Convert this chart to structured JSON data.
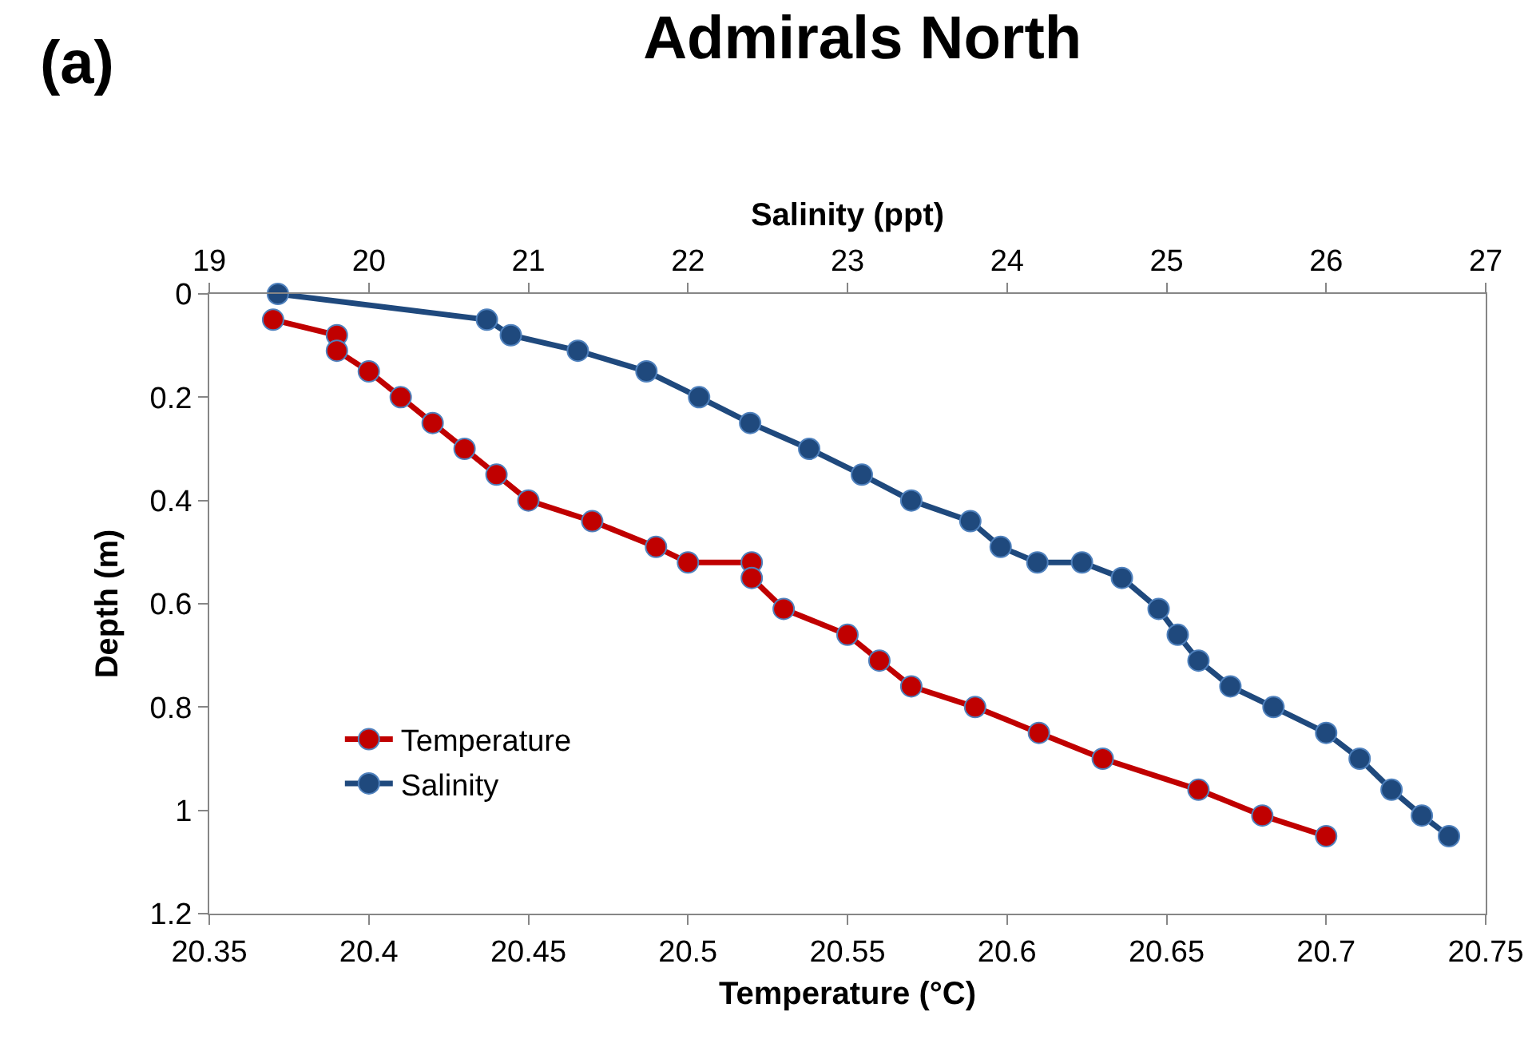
{
  "chart_data": {
    "type": "line",
    "title": "Admirals North",
    "annotations": [
      "(a)"
    ],
    "xlabel": "Temperature (°C)",
    "x2label": "Salinity (ppt)",
    "ylabel": "Depth (m)",
    "xlim": [
      20.35,
      20.75
    ],
    "xticks": [
      20.35,
      20.4,
      20.45,
      20.5,
      20.55,
      20.6,
      20.65,
      20.7,
      20.75
    ],
    "x2lim": [
      19,
      27
    ],
    "x2ticks": [
      19,
      20,
      21,
      22,
      23,
      24,
      25,
      26,
      27
    ],
    "ylim": [
      1.2,
      0
    ],
    "yticks": [
      0,
      0.2,
      0.4,
      0.6,
      0.8,
      1,
      1.2
    ],
    "grid": false,
    "legend": "bottom left",
    "marker": "circle",
    "line_style": "solid",
    "series": [
      {
        "name": "Temperature",
        "color": "#c00000",
        "x": [
          20.37,
          20.39,
          20.39,
          20.4,
          20.41,
          20.42,
          20.43,
          20.44,
          20.45,
          20.47,
          20.49,
          20.5,
          20.52,
          20.52,
          20.53,
          20.55,
          20.56,
          20.57,
          20.59,
          20.61,
          20.63,
          20.66,
          20.68,
          20.7
        ],
        "values": [
          0.05,
          0.08,
          0.11,
          0.15,
          0.2,
          0.25,
          0.3,
          0.35,
          0.4,
          0.44,
          0.49,
          0.52,
          0.52,
          0.55,
          0.61,
          0.66,
          0.71,
          0.76,
          0.8,
          0.85,
          0.9,
          0.96,
          1.01,
          1.05
        ]
      },
      {
        "name": "Salinity",
        "color": "#1f497d",
        "axis": "x2",
        "x": [
          19.43,
          20.74,
          20.89,
          21.31,
          21.74,
          22.07,
          22.39,
          22.76,
          23.09,
          23.4,
          23.77,
          23.96,
          24.19,
          24.47,
          24.72,
          24.95,
          25.07,
          25.2,
          25.4,
          25.67,
          26.0,
          26.21,
          26.41,
          26.6,
          26.77
        ],
        "values": [
          0,
          0.05,
          0.08,
          0.11,
          0.15,
          0.2,
          0.25,
          0.3,
          0.35,
          0.4,
          0.44,
          0.49,
          0.52,
          0.52,
          0.55,
          0.61,
          0.66,
          0.71,
          0.76,
          0.8,
          0.85,
          0.9,
          0.96,
          1.01,
          1.05
        ]
      }
    ]
  }
}
